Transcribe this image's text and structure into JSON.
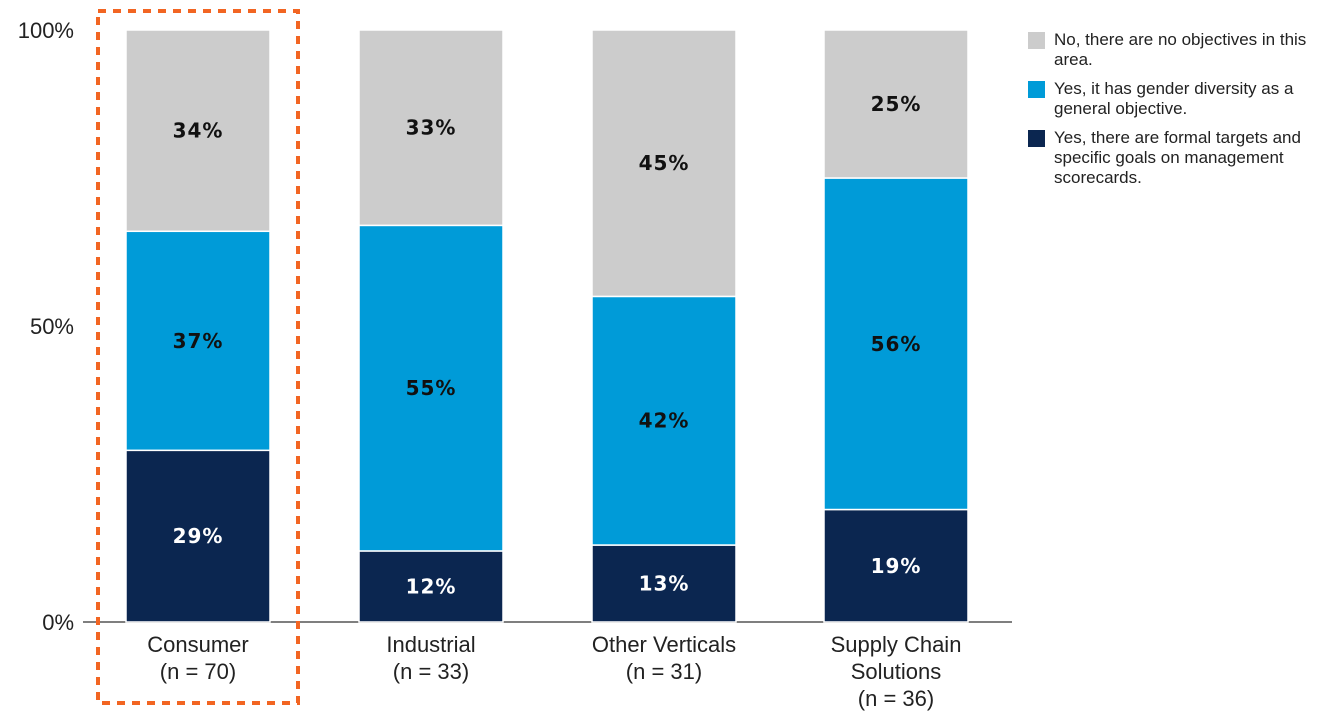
{
  "chart_data": {
    "type": "bar",
    "stacked": true,
    "normalized": true,
    "categories": [
      [
        "Consumer",
        "(n = 70)"
      ],
      [
        "Industrial",
        "(n = 33)"
      ],
      [
        "Other Verticals",
        "(n = 31)"
      ],
      [
        "Supply Chain",
        "Solutions",
        "(n = 36)"
      ]
    ],
    "highlighted_category": "Consumer",
    "highlight_color": "#f26522",
    "yticks": [
      "0%",
      "50%",
      "100%"
    ],
    "ylim": [
      0,
      100
    ],
    "series": [
      {
        "name": "Yes, there are formal targets and specific goals on management scorecards.",
        "color": "#0b2650",
        "label_color": "#ffffff",
        "values": [
          29,
          12,
          13,
          19
        ],
        "labels": [
          "29%",
          "12%",
          "13%",
          "19%"
        ]
      },
      {
        "name": "Yes, it has gender diversity as a general objective.",
        "color": "#009bd8",
        "label_color": "#111111",
        "values": [
          37,
          55,
          42,
          56
        ],
        "labels": [
          "37%",
          "55%",
          "42%",
          "56%"
        ]
      },
      {
        "name": "No, there are no objectives in this area.",
        "color": "#cccccc",
        "label_color": "#111111",
        "values": [
          34,
          33,
          45,
          25
        ],
        "labels": [
          "34%",
          "33%",
          "45%",
          "25%"
        ]
      }
    ],
    "legend": {
      "position": "right",
      "items": [
        {
          "text": "No, there are no objectives in this area.",
          "color": "#cccccc"
        },
        {
          "text": "Yes, it has gender diversity as a general objective.",
          "color": "#009bd8"
        },
        {
          "text": "Yes, there are formal targets and specific goals on management scorecards.",
          "color": "#0b2650"
        }
      ]
    },
    "grid": false
  }
}
